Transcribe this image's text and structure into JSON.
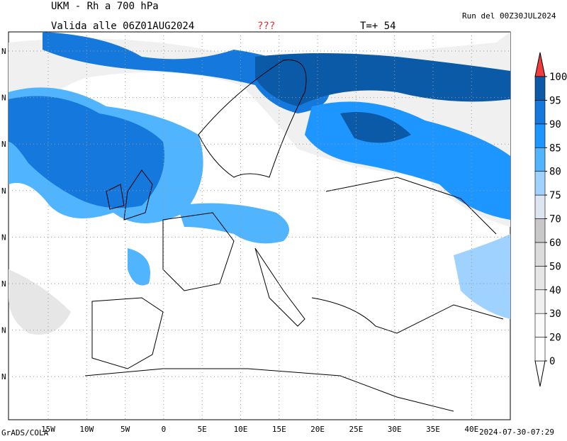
{
  "header": {
    "title": "UKM - Rh a 700 hPa",
    "valid": "Valida alle 06Z01AUG2024",
    "flag": "???",
    "step": "T=+ 54",
    "run": "Run del 00Z30JUL2024"
  },
  "footer": {
    "credit": "GrADS/COLA",
    "timestamp": "2024-07-30-07:29"
  },
  "map": {
    "lon_labels": [
      "15W",
      "10W",
      "5W",
      "0",
      "5E",
      "10E",
      "15E",
      "20E",
      "25E",
      "30E",
      "35E",
      "40E"
    ],
    "lat_labels": [
      "N",
      "N",
      "N",
      "N",
      "N",
      "N",
      "N",
      "N"
    ]
  },
  "colorbar": {
    "levels": [
      0,
      20,
      30,
      40,
      50,
      60,
      70,
      75,
      80,
      85,
      90,
      95,
      100
    ],
    "colors": [
      "#ffffff",
      "#fafafa",
      "#f0f0f0",
      "#e6e6e6",
      "#dcdcdc",
      "#c8c8c8",
      "#dde6f0",
      "#a0d2ff",
      "#50b4ff",
      "#1e96ff",
      "#1478dc",
      "#0a5aa8"
    ],
    "under_color": "#ffffff",
    "over_color": "#f03c3c"
  }
}
